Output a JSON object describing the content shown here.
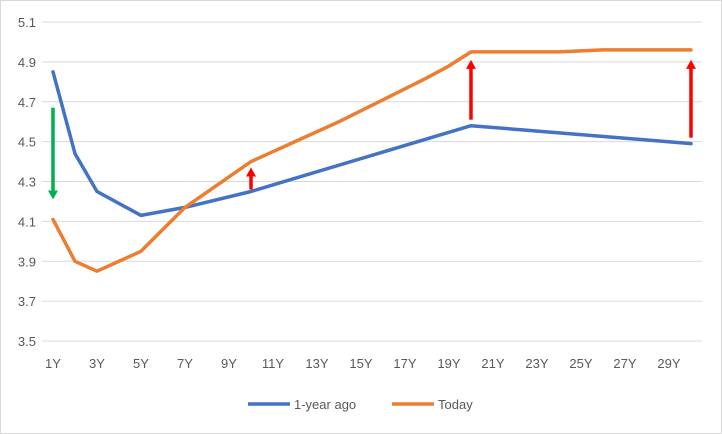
{
  "chart_data": {
    "type": "line",
    "title": "",
    "xlabel": "",
    "ylabel": "",
    "categories": [
      "1Y",
      "2Y",
      "3Y",
      "4Y",
      "5Y",
      "6Y",
      "7Y",
      "8Y",
      "9Y",
      "10Y",
      "11Y",
      "12Y",
      "13Y",
      "14Y",
      "15Y",
      "16Y",
      "17Y",
      "18Y",
      "19Y",
      "20Y",
      "21Y",
      "22Y",
      "23Y",
      "24Y",
      "25Y",
      "26Y",
      "27Y",
      "28Y",
      "29Y",
      "30Y"
    ],
    "x_tick_labels": [
      "1Y",
      "3Y",
      "5Y",
      "7Y",
      "9Y",
      "11Y",
      "13Y",
      "15Y",
      "17Y",
      "19Y",
      "21Y",
      "23Y",
      "25Y",
      "27Y",
      "29Y"
    ],
    "y_tick_labels": [
      "3.5",
      "3.7",
      "3.9",
      "4.1",
      "4.3",
      "4.5",
      "4.7",
      "4.9",
      "5.1"
    ],
    "ylim": [
      3.5,
      5.1
    ],
    "y_major_step": 0.2,
    "grid": true,
    "legend_position": "bottom",
    "series": [
      {
        "name": "1-year ago",
        "color": "#4472c4",
        "x": [
          "1Y",
          "2Y",
          "3Y",
          "5Y",
          "7Y",
          "10Y",
          "20Y",
          "30Y"
        ],
        "values": [
          4.85,
          4.44,
          4.25,
          4.13,
          4.17,
          4.25,
          4.58,
          4.49
        ]
      },
      {
        "name": "Today",
        "color": "#ed7d31",
        "x": [
          "1Y",
          "2Y",
          "3Y",
          "5Y",
          "7Y",
          "10Y",
          "12Y",
          "14Y",
          "16Y",
          "18Y",
          "19Y",
          "20Y",
          "22Y",
          "24Y",
          "26Y",
          "28Y",
          "30Y"
        ],
        "values": [
          4.11,
          3.9,
          3.85,
          3.95,
          4.17,
          4.4,
          4.5,
          4.6,
          4.71,
          4.82,
          4.88,
          4.95,
          4.95,
          4.95,
          4.96,
          4.96,
          4.96
        ]
      }
    ],
    "annotations": [
      {
        "type": "arrow",
        "direction": "down",
        "color": "#00b050",
        "x": "1Y",
        "from": 4.67,
        "to": 4.21
      },
      {
        "type": "arrow",
        "direction": "up",
        "color": "#ff0000",
        "x": "10Y",
        "from": 4.26,
        "to": 4.37
      },
      {
        "type": "arrow",
        "direction": "up",
        "color": "#ff0000",
        "x": "20Y",
        "from": 4.61,
        "to": 4.91
      },
      {
        "type": "arrow",
        "direction": "up",
        "color": "#ff0000",
        "x": "30Y",
        "from": 4.52,
        "to": 4.91
      }
    ],
    "gridline_color": "#d9d9d9"
  }
}
